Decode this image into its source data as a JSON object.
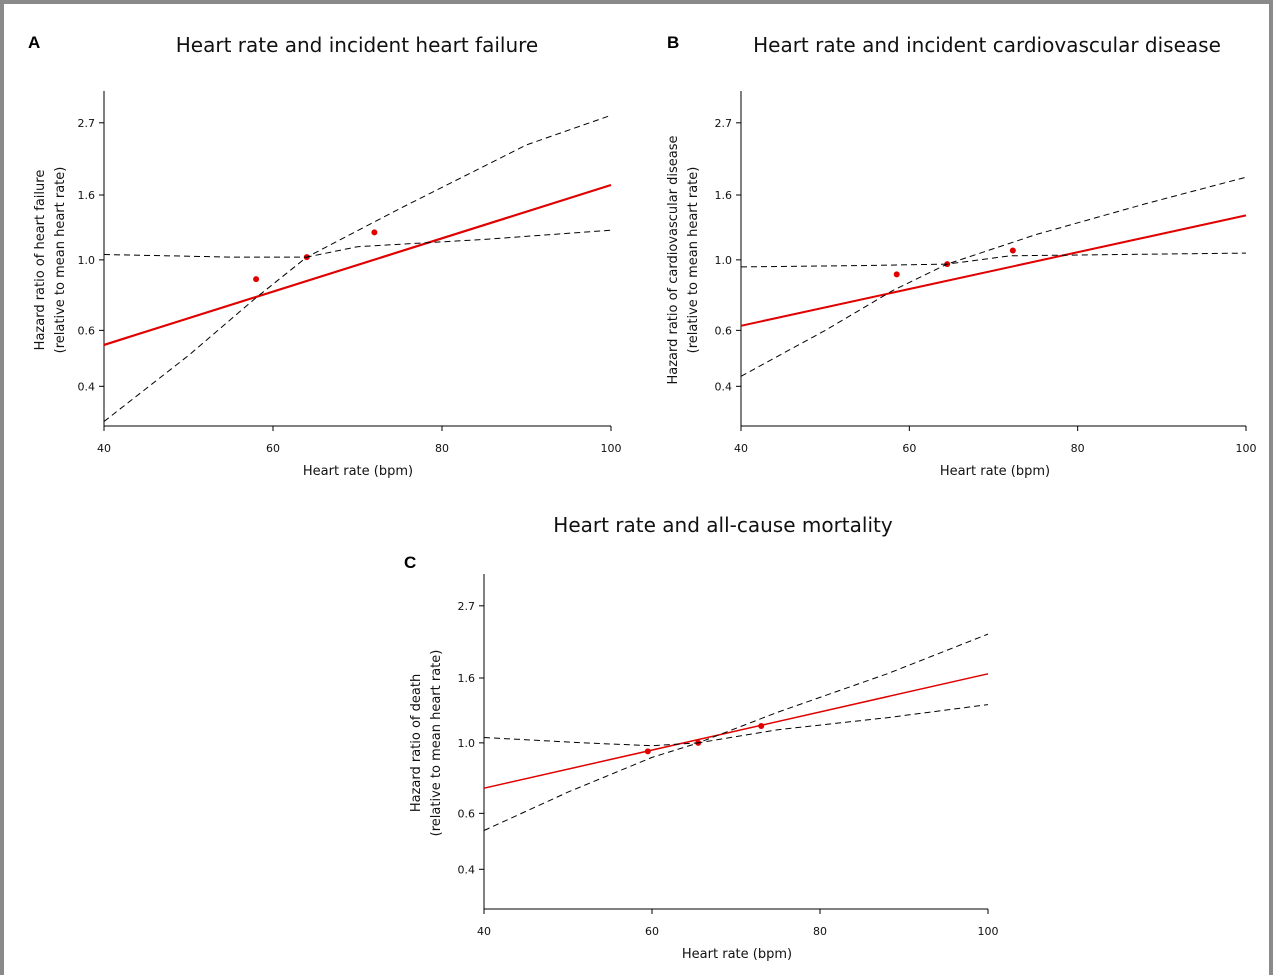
{
  "chart_data": [
    {
      "panel_label": "A",
      "type": "line",
      "title": "Heart rate and incident heart failure",
      "xlabel": "Heart rate (bpm)",
      "ylabel_lines": [
        "Hazard ratio of heart failure",
        "(relative to mean heart rate)"
      ],
      "xlim": [
        40,
        100
      ],
      "x_ticks": [
        40,
        60,
        80,
        100
      ],
      "y_scale": "log",
      "ylim": [
        0.3,
        3.4
      ],
      "y_ticks": [
        0.4,
        0.6,
        1.0,
        1.6,
        2.7
      ],
      "y_tick_labels": [
        "0.4",
        "0.6",
        "1.0",
        "1.6",
        "2.7"
      ],
      "grid": false,
      "series": [
        {
          "role": "estimate",
          "color": "#e00000",
          "x": [
            40,
            100
          ],
          "y": [
            0.54,
            1.72
          ],
          "markers": {
            "x": [
              58,
              64,
              72
            ],
            "y": [
              0.87,
              1.02,
              1.22
            ]
          }
        },
        {
          "role": "upper_ci",
          "color": "#000000",
          "x": [
            40,
            55,
            64,
            75,
            90,
            100
          ],
          "y": [
            1.04,
            1.02,
            1.02,
            1.45,
            2.3,
            2.85
          ]
        },
        {
          "role": "lower_ci",
          "color": "#000000",
          "x": [
            40,
            50,
            58,
            64,
            70,
            85,
            100
          ],
          "y": [
            0.31,
            0.5,
            0.76,
            1.02,
            1.1,
            1.16,
            1.24
          ]
        }
      ]
    },
    {
      "panel_label": "B",
      "type": "line",
      "title": "Heart rate and incident cardiovascular disease",
      "xlabel": "Heart rate (bpm)",
      "ylabel_lines": [
        "Hazard ratio of cardiovascular disease",
        "(relative to mean heart rate)"
      ],
      "xlim": [
        40,
        100
      ],
      "x_ticks": [
        40,
        60,
        80,
        100
      ],
      "y_scale": "log",
      "ylim": [
        0.3,
        3.4
      ],
      "y_ticks": [
        0.4,
        0.6,
        1.0,
        1.6,
        2.7
      ],
      "y_tick_labels": [
        "0.4",
        "0.6",
        "1.0",
        "1.6",
        "2.7"
      ],
      "grid": false,
      "series": [
        {
          "role": "estimate",
          "color": "#e00000",
          "x": [
            40,
            100
          ],
          "y": [
            0.62,
            1.38
          ],
          "markers": {
            "x": [
              58.5,
              64.5,
              72.3
            ],
            "y": [
              0.9,
              0.97,
              1.07
            ]
          }
        },
        {
          "role": "upper_ci",
          "color": "#000000",
          "x": [
            40,
            55,
            64.5,
            75,
            88,
            100
          ],
          "y": [
            0.95,
            0.96,
            0.97,
            1.2,
            1.5,
            1.82
          ]
        },
        {
          "role": "lower_ci",
          "color": "#000000",
          "x": [
            40,
            50,
            58,
            64.5,
            72,
            85,
            100
          ],
          "y": [
            0.43,
            0.6,
            0.8,
            0.97,
            1.03,
            1.04,
            1.05
          ]
        }
      ]
    },
    {
      "panel_label": "C",
      "type": "line",
      "title": "Heart rate and all-cause mortality",
      "xlabel": "Heart rate (bpm)",
      "ylabel_lines": [
        "Hazard ratio of death",
        "(relative to mean heart rate)"
      ],
      "xlim": [
        40,
        100
      ],
      "x_ticks": [
        40,
        60,
        80,
        100
      ],
      "y_scale": "log",
      "ylim": [
        0.3,
        3.4
      ],
      "y_ticks": [
        0.4,
        0.6,
        1.0,
        1.6,
        2.7
      ],
      "y_tick_labels": [
        "0.4",
        "0.6",
        "1.0",
        "1.6",
        "2.7"
      ],
      "grid": false,
      "series": [
        {
          "role": "estimate",
          "color": "#e00000",
          "x": [
            40,
            100
          ],
          "y": [
            0.72,
            1.65
          ],
          "markers": {
            "x": [
              59.5,
              65.5,
              73
            ],
            "y": [
              0.94,
              1.0,
              1.13
            ]
          }
        },
        {
          "role": "upper_ci",
          "color": "#000000",
          "x": [
            40,
            52,
            60,
            65.5,
            75,
            88,
            100
          ],
          "y": [
            1.04,
            1.0,
            0.98,
            1.0,
            1.25,
            1.65,
            2.2
          ]
        },
        {
          "role": "lower_ci",
          "color": "#000000",
          "x": [
            40,
            50,
            60,
            65.5,
            75,
            88,
            100
          ],
          "y": [
            0.53,
            0.7,
            0.9,
            1.0,
            1.1,
            1.2,
            1.32
          ]
        }
      ]
    }
  ]
}
